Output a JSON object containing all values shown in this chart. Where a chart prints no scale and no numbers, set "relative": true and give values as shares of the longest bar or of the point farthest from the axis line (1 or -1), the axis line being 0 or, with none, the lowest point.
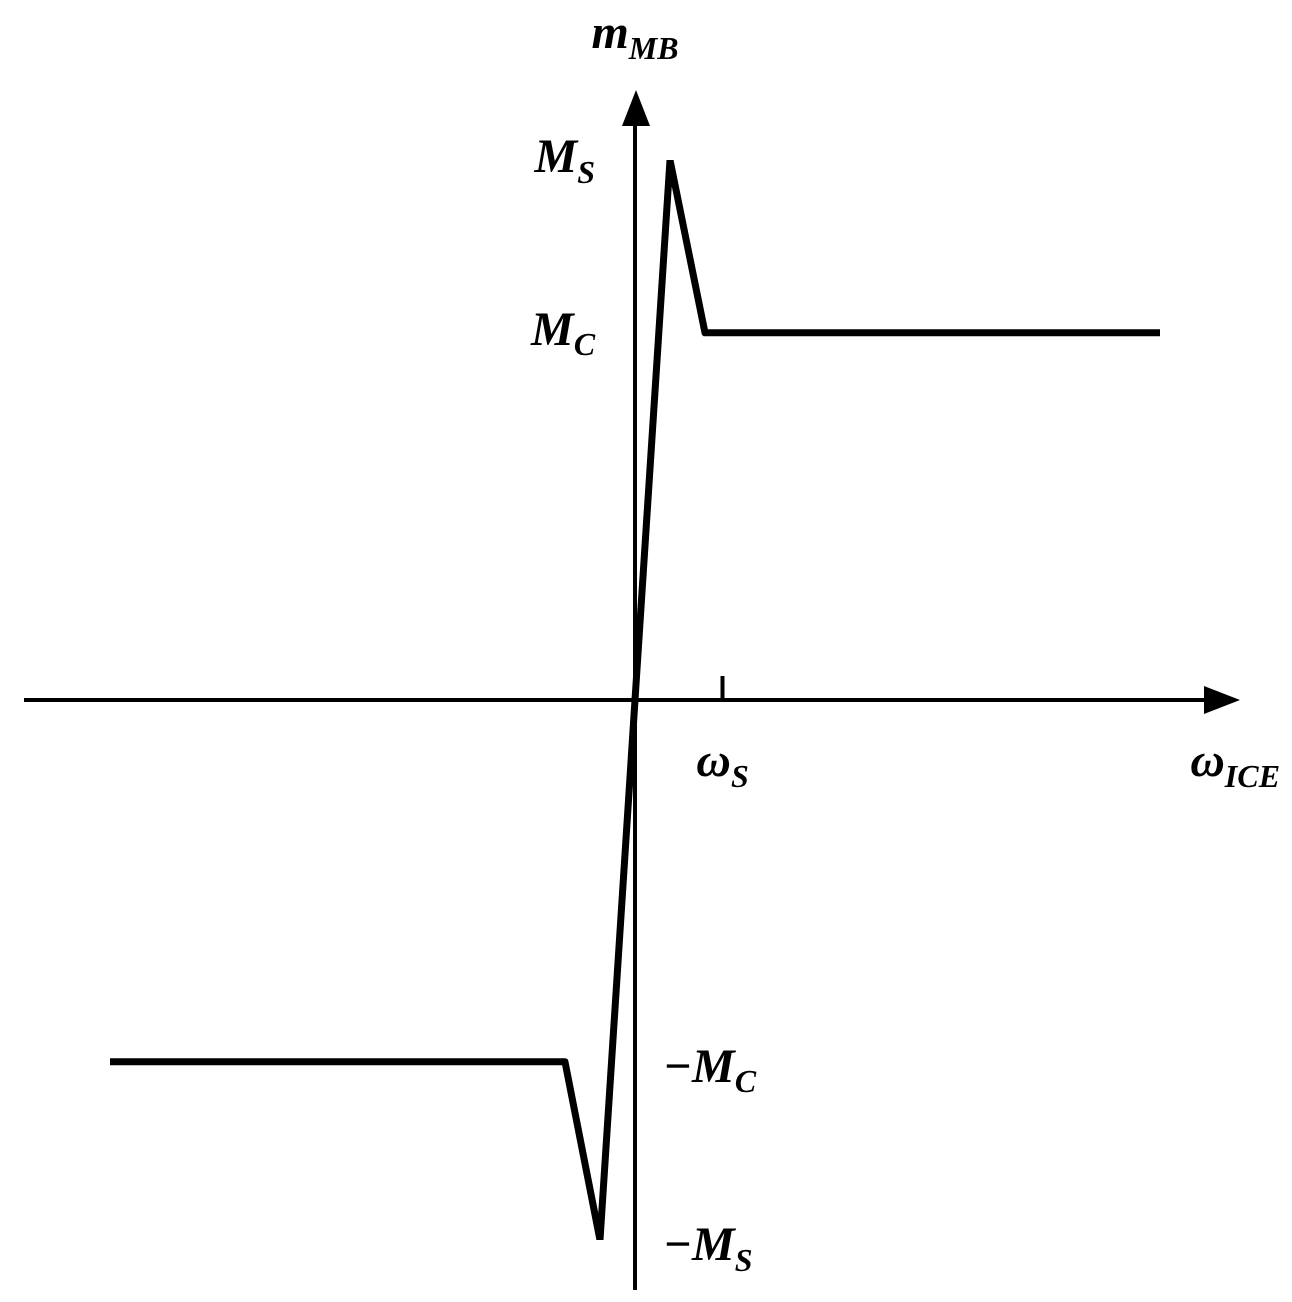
{
  "chart_data": {
    "type": "line",
    "relative": true,
    "xlabel": "ω$_{ICE}$",
    "ylabel": "m$_{MB}$",
    "categories": [
      null,
      null,
      null,
      null,
      null,
      null,
      null,
      null,
      null,
      null,
      null,
      null,
      null,
      null,
      null,
      null,
      null,
      null,
      null,
      null,
      null,
      null,
      null,
      null,
      null,
      null,
      null,
      null,
      null,
      null,
      null
    ],
    "series": [
      {
        "color": "#000000",
        "values": [
          -0.67,
          -0.67,
          -0.67,
          -0.67,
          -0.67,
          -0.67,
          -0.67,
          -0.67,
          -0.67,
          -0.67,
          -0.67,
          -0.67,
          -0.67,
          -0.67,
          -1,
          0,
          1,
          0.68,
          0.68,
          0.68,
          0.68,
          0.68,
          0.68,
          0.68,
          0.68,
          0.68,
          0.68,
          0.68,
          0.68,
          0.68,
          0.68
        ]
      }
    ],
    "annotations": [
      "M$_{S}$",
      "M$_{C}$",
      "−M$_{C}$",
      "−M$_{S}$",
      "ω$_{S}$"
    ],
    "legend": false,
    "marker": "none",
    "line_style": "solid"
  }
}
